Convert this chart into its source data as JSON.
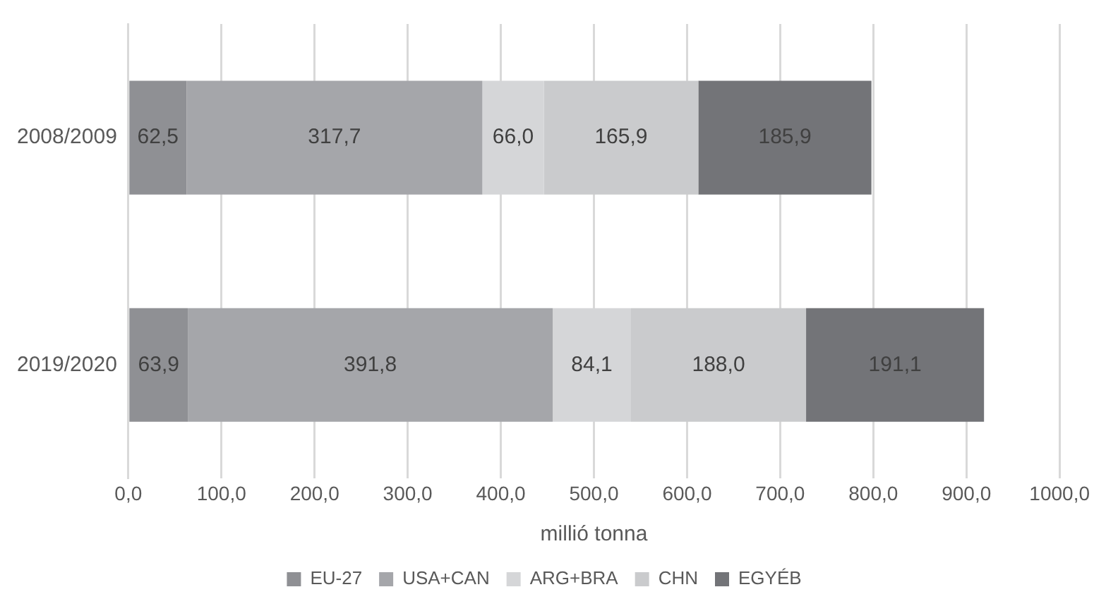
{
  "chart_data": {
    "type": "bar",
    "orientation": "horizontal",
    "stacked": true,
    "xlabel": "millió tonna",
    "categories": [
      "2008/2009",
      "2019/2020"
    ],
    "series": [
      {
        "name": "EU-27",
        "color": "#8f9094",
        "values": [
          62.5,
          63.9
        ],
        "value_labels": [
          "62,5",
          "63,9"
        ]
      },
      {
        "name": "USA+CAN",
        "color": "#a5a6aa",
        "values": [
          317.7,
          391.8
        ],
        "value_labels": [
          "317,7",
          "391,8"
        ]
      },
      {
        "name": "ARG+BRA",
        "color": "#d5d6d8",
        "values": [
          66.0,
          84.1
        ],
        "value_labels": [
          "66,0",
          "84,1"
        ]
      },
      {
        "name": "CHN",
        "color": "#cacbcd",
        "values": [
          165.9,
          188.0
        ],
        "value_labels": [
          "165,9",
          "188,0"
        ]
      },
      {
        "name": "EGYÉB",
        "color": "#737478",
        "values": [
          185.9,
          191.1
        ],
        "value_labels": [
          "185,9",
          "191,1"
        ]
      }
    ],
    "xlim": [
      0,
      1000
    ],
    "xticks": [
      {
        "value": 0,
        "label": "0,0"
      },
      {
        "value": 100,
        "label": "100,0"
      },
      {
        "value": 200,
        "label": "200,0"
      },
      {
        "value": 300,
        "label": "300,0"
      },
      {
        "value": 400,
        "label": "400,0"
      },
      {
        "value": 500,
        "label": "500,0"
      },
      {
        "value": 600,
        "label": "600,0"
      },
      {
        "value": 700,
        "label": "700,0"
      },
      {
        "value": 800,
        "label": "800,0"
      },
      {
        "value": 900,
        "label": "900,0"
      },
      {
        "value": 1000,
        "label": "1000,0"
      }
    ],
    "grid": "x",
    "legend": "bottom"
  }
}
